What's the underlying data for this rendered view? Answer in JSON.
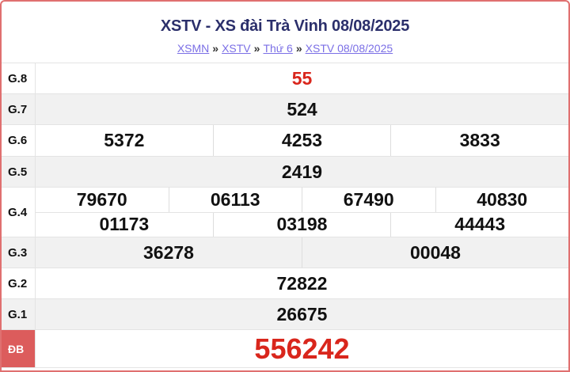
{
  "header": {
    "title": "XSTV - XS đài Trà Vinh 08/08/2025",
    "breadcrumbs": [
      "XSMN",
      "XSTV",
      "Thứ 6",
      "XSTV 08/08/2025"
    ],
    "separator": "»"
  },
  "colors": {
    "accent": "#d9261c",
    "title": "#2b2f6b",
    "link": "#7b6fe6",
    "border": "#e07070"
  },
  "prizes": [
    {
      "label": "G.8",
      "numbers": [
        [
          "55"
        ]
      ]
    },
    {
      "label": "G.7",
      "numbers": [
        [
          "524"
        ]
      ]
    },
    {
      "label": "G.6",
      "numbers": [
        [
          "5372",
          "4253",
          "3833"
        ]
      ]
    },
    {
      "label": "G.5",
      "numbers": [
        [
          "2419"
        ]
      ]
    },
    {
      "label": "G.4",
      "numbers": [
        [
          "79670",
          "06113",
          "67490",
          "40830"
        ],
        [
          "01173",
          "03198",
          "44443"
        ]
      ]
    },
    {
      "label": "G.3",
      "numbers": [
        [
          "36278",
          "00048"
        ]
      ]
    },
    {
      "label": "G.2",
      "numbers": [
        [
          "72822"
        ]
      ]
    },
    {
      "label": "G.1",
      "numbers": [
        [
          "26675"
        ]
      ]
    },
    {
      "label": "ĐB",
      "numbers": [
        [
          "556242"
        ]
      ]
    }
  ]
}
